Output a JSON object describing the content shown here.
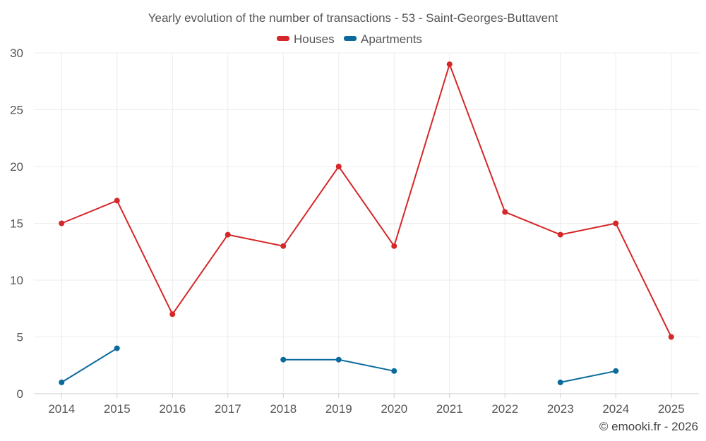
{
  "chart_data": {
    "type": "line",
    "title": "Yearly evolution of the number of transactions - 53 - Saint-Georges-Buttavent",
    "categories": [
      "2014",
      "2015",
      "2016",
      "2017",
      "2018",
      "2019",
      "2020",
      "2021",
      "2022",
      "2023",
      "2024",
      "2025"
    ],
    "series": [
      {
        "name": "Houses",
        "color": "#d62728",
        "values": [
          15,
          17,
          7,
          14,
          13,
          20,
          13,
          29,
          16,
          14,
          15,
          5
        ]
      },
      {
        "name": "Apartments",
        "color": "#0b6a9c",
        "values": [
          1,
          4,
          null,
          null,
          3,
          3,
          2,
          null,
          null,
          1,
          2,
          null
        ]
      }
    ],
    "ylim": [
      0,
      30
    ],
    "yticks": [
      0,
      5,
      10,
      15,
      20,
      25,
      30
    ],
    "xlabel": "",
    "ylabel": "",
    "grid": true,
    "legend_position": "top-center"
  },
  "credit": "© emooki.fr - 2026"
}
